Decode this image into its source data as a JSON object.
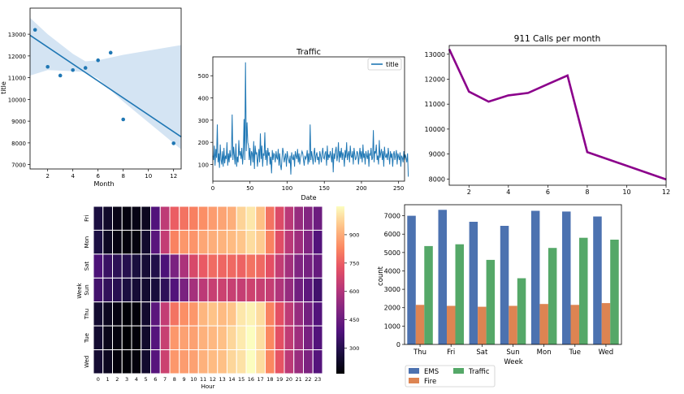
{
  "chart_data": [
    {
      "type": "scatter",
      "title": "",
      "xlabel": "Month",
      "ylabel": "title",
      "x": [
        1,
        2,
        3,
        4,
        5,
        6,
        7,
        8,
        12
      ],
      "y": [
        13200,
        11500,
        11100,
        11350,
        11450,
        11800,
        12150,
        9080,
        7980
      ],
      "fit_line": {
        "x": [
          0.6,
          12.6
        ],
        "y": [
          12950,
          8280
        ]
      },
      "ci_band": {
        "x": [
          0.6,
          2,
          4,
          5,
          6,
          8,
          12.6
        ],
        "upper": [
          13750,
          13000,
          12100,
          11750,
          11800,
          12050,
          12500
        ],
        "lower": [
          11100,
          11350,
          11300,
          11250,
          10950,
          9900,
          7700
        ]
      },
      "xticks": [
        2,
        4,
        6,
        8,
        10,
        12
      ],
      "yticks": [
        7000,
        8000,
        9000,
        10000,
        11000,
        12000,
        13000
      ],
      "xlim": [
        0.6,
        12.6
      ],
      "ylim": [
        6800,
        14200
      ],
      "point_color": "#1f77b4",
      "band_color": "#c6dbef"
    },
    {
      "type": "line",
      "title": "Traffic",
      "xlabel": "Date",
      "ylabel": "",
      "legend": "title",
      "xticks": [
        0,
        50,
        100,
        150,
        200,
        250
      ],
      "yticks": [
        100,
        200,
        300,
        400,
        500
      ],
      "xlim": [
        0,
        258
      ],
      "ylim": [
        25,
        585
      ],
      "color": "#1f77b4"
    },
    {
      "type": "line",
      "title": "911 Calls per month",
      "xlabel": "",
      "ylabel": "",
      "x": [
        1,
        2,
        3,
        4,
        5,
        6,
        7,
        8,
        12
      ],
      "y": [
        13200,
        11500,
        11100,
        11350,
        11450,
        11800,
        12150,
        9080,
        7980
      ],
      "xticks": [
        2,
        4,
        6,
        8,
        10,
        12
      ],
      "yticks": [
        8000,
        9000,
        10000,
        11000,
        12000,
        13000
      ],
      "xlim": [
        1,
        12
      ],
      "ylim": [
        7750,
        13350
      ],
      "color": "#8b008b"
    },
    {
      "type": "heatmap",
      "xlabel": "Hour",
      "ylabel": "Week",
      "rows": [
        "Fri",
        "Mon",
        "Sat",
        "Sun",
        "Thu",
        "Tue",
        "Wed"
      ],
      "cols": [
        "0",
        "1",
        "2",
        "3",
        "4",
        "5",
        "6",
        "7",
        "8",
        "9",
        "10",
        "11",
        "12",
        "13",
        "14",
        "15",
        "16",
        "17",
        "18",
        "19",
        "20",
        "21",
        "22",
        "23"
      ],
      "values": [
        [
          275,
          235,
          200,
          185,
          195,
          215,
          390,
          630,
          750,
          790,
          815,
          845,
          870,
          885,
          905,
          975,
          1010,
          940,
          790,
          700,
          620,
          545,
          505,
          455
        ],
        [
          280,
          220,
          190,
          180,
          185,
          240,
          410,
          640,
          820,
          860,
          855,
          890,
          905,
          915,
          930,
          950,
          990,
          960,
          820,
          710,
          620,
          560,
          500,
          395
        ],
        [
          380,
          340,
          315,
          300,
          270,
          255,
          290,
          380,
          485,
          590,
          690,
          740,
          775,
          765,
          770,
          760,
          790,
          770,
          720,
          640,
          570,
          500,
          475,
          440
        ],
        [
          360,
          325,
          305,
          275,
          255,
          245,
          265,
          320,
          395,
          485,
          575,
          625,
          650,
          660,
          650,
          645,
          665,
          650,
          645,
          600,
          545,
          465,
          420,
          360
        ],
        [
          245,
          215,
          190,
          170,
          175,
          240,
          415,
          640,
          790,
          845,
          860,
          920,
          945,
          930,
          950,
          1010,
          1030,
          990,
          820,
          720,
          630,
          545,
          470,
          395
        ],
        [
          245,
          205,
          185,
          165,
          175,
          235,
          400,
          650,
          860,
          880,
          880,
          910,
          925,
          940,
          980,
          1015,
          1050,
          995,
          830,
          720,
          635,
          560,
          480,
          395
        ],
        [
          250,
          215,
          180,
          170,
          180,
          240,
          405,
          660,
          860,
          870,
          880,
          910,
          930,
          940,
          980,
          1000,
          1050,
          990,
          830,
          730,
          625,
          550,
          490,
          400
        ]
      ],
      "colorbar_ticks": [
        300,
        450,
        600,
        750,
        900
      ],
      "vmin": 165,
      "vmax": 1050,
      "colormap": "magma"
    },
    {
      "type": "bar",
      "xlabel": "Week",
      "ylabel": "count",
      "categories": [
        "Thu",
        "Fri",
        "Sat",
        "Sun",
        "Mon",
        "Tue",
        "Wed"
      ],
      "series": [
        {
          "name": "EMS",
          "color": "#4c72b0",
          "values": [
            7000,
            7320,
            6670,
            6450,
            7270,
            7230,
            6960
          ]
        },
        {
          "name": "Fire",
          "color": "#dd8452",
          "values": [
            2150,
            2100,
            2050,
            2100,
            2200,
            2150,
            2250
          ]
        },
        {
          "name": "Traffic",
          "color": "#55a868",
          "values": [
            5350,
            5450,
            4600,
            3600,
            5250,
            5800,
            5700
          ]
        }
      ],
      "yticks": [
        0,
        1000,
        2000,
        3000,
        4000,
        5000,
        6000,
        7000
      ],
      "ylim": [
        0,
        7600
      ],
      "legend_position": "below"
    }
  ],
  "traffic_series": [
    140,
    120,
    185,
    95,
    170,
    130,
    280,
    110,
    150,
    85,
    190,
    120,
    100,
    160,
    90,
    175,
    105,
    140,
    125,
    200,
    95,
    150,
    110,
    165,
    130,
    145,
    325,
    120,
    180,
    140,
    100,
    195,
    90,
    135,
    110,
    210,
    140,
    160,
    125,
    175,
    100,
    150,
    305,
    120,
    560,
    160,
    290,
    200,
    185,
    120,
    175,
    95,
    160,
    150,
    110,
    205,
    80,
    185,
    145,
    155,
    90,
    130,
    170,
    110,
    240,
    125,
    185,
    90,
    150,
    140,
    245,
    120,
    165,
    95,
    175,
    140,
    155,
    100,
    135,
    60,
    165,
    120,
    150,
    145,
    110,
    160,
    130,
    125,
    170,
    95,
    150,
    100,
    75,
    125,
    175,
    155,
    110,
    130,
    150,
    90,
    160,
    135,
    120,
    105,
    140,
    55,
    155,
    130,
    120,
    145,
    90,
    160,
    140,
    125,
    170,
    110,
    150,
    100,
    130,
    145,
    160,
    150,
    120,
    95,
    140,
    125,
    135,
    165,
    100,
    150,
    110,
    280,
    120,
    160,
    130,
    100,
    150,
    175,
    110,
    140,
    155,
    120,
    135,
    100,
    160,
    140,
    110,
    150,
    175,
    130,
    125,
    150,
    160,
    95,
    185,
    120,
    145,
    130,
    160,
    140,
    110,
    175,
    65,
    150,
    125,
    160,
    180,
    115,
    140,
    200,
    110,
    160,
    130,
    175,
    120,
    155,
    140,
    90,
    165,
    130,
    200,
    120,
    145,
    160,
    110,
    185,
    140,
    130,
    160,
    100,
    175,
    145,
    120,
    130,
    160,
    150,
    100,
    140,
    175,
    125,
    160,
    110,
    190,
    130,
    150,
    100,
    160,
    140,
    125,
    165,
    90,
    150,
    140,
    175,
    120,
    130,
    255,
    110,
    160,
    150,
    190,
    120,
    140,
    100,
    210,
    130,
    150,
    170,
    120,
    160,
    90,
    180,
    140,
    130,
    150,
    120,
    175,
    140,
    100,
    160,
    130,
    150,
    90,
    145,
    160,
    120,
    140,
    165,
    100,
    150,
    135,
    120,
    155,
    90,
    140,
    130,
    110,
    160,
    120,
    145,
    130,
    110,
    150,
    45
  ]
}
